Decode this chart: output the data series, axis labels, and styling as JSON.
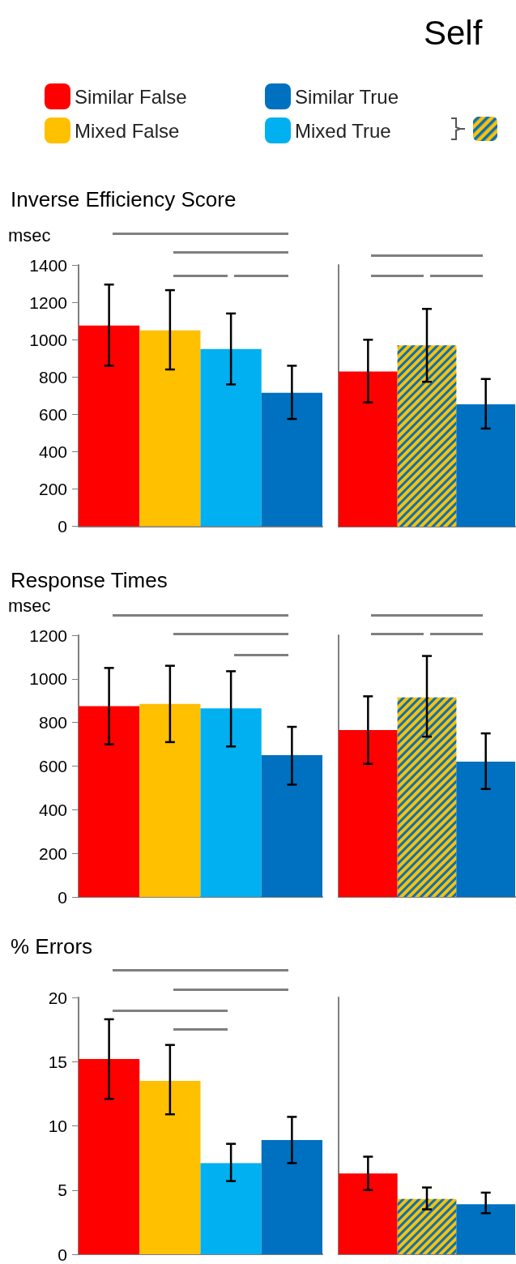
{
  "chart_data": [
    {
      "type": "bar",
      "title": "Inverse Efficiency Score",
      "ylabel": "msec",
      "categories": [
        null,
        null,
        null,
        null
      ],
      "stacked": true,
      "legend": "top",
      "tick_labels": "y",
      "grid": false,
      "ylim": [
        0,
        1400
      ],
      "yticks": [
        0,
        200,
        400,
        600,
        800,
        1000,
        1200,
        1400
      ],
      "series": [
        {
          "name": "Similar False",
          "color": "#ff0000",
          "values": [
            1075,
            null,
            null,
            null
          ],
          "errors": [
            [
              860,
              1295
            ],
            null,
            null,
            null
          ]
        },
        {
          "name": "Mixed False",
          "color": "#ffc000",
          "values": [
            null,
            1050,
            null,
            null
          ],
          "errors": [
            null,
            [
              840,
              1265
            ],
            null,
            null
          ]
        },
        {
          "name": "Mixed True",
          "color": "#00b0f0",
          "values": [
            null,
            null,
            950,
            null
          ],
          "errors": [
            null,
            null,
            [
              760,
              1140
            ],
            null
          ]
        },
        {
          "name": "Similar True",
          "color": "#0070c0",
          "values": [
            null,
            null,
            null,
            715
          ],
          "errors": [
            null,
            null,
            null,
            [
              575,
              860
            ]
          ]
        }
      ]
    },
    {
      "type": "bar",
      "title": "Self",
      "categories": [
        null,
        null,
        null
      ],
      "stacked": true,
      "tick_labels": false,
      "grid": false,
      "ylim": [
        0,
        1400
      ],
      "yticks": [
        0,
        200,
        400,
        600,
        800,
        1000,
        1200,
        1400
      ],
      "series": [
        {
          "color": "#ff0000",
          "values": [
            830,
            null,
            null
          ],
          "errors": [
            [
              665,
              1000
            ],
            null,
            null
          ]
        },
        {
          "color": "#ffc000",
          "values": [
            null,
            970,
            null
          ],
          "errors": [
            null,
            [
              775,
              1165
            ],
            null
          ]
        },
        {
          "color": "#0070c0",
          "values": [
            null,
            null,
            655
          ],
          "errors": [
            null,
            null,
            [
              525,
              790
            ]
          ]
        }
      ]
    },
    {
      "type": "bar",
      "title": "Response Times",
      "ylabel": "msec",
      "categories": [
        null,
        null,
        null,
        null
      ],
      "stacked": true,
      "tick_labels": "y",
      "grid": false,
      "ylim": [
        0,
        1200
      ],
      "yticks": [
        0,
        200,
        400,
        600,
        800,
        1000,
        1200
      ],
      "series": [
        {
          "color": "#ff0000",
          "values": [
            875,
            null,
            null,
            null
          ],
          "errors": [
            [
              700,
              1050
            ],
            null,
            null,
            null
          ]
        },
        {
          "color": "#ffc000",
          "values": [
            null,
            885,
            null,
            null
          ],
          "errors": [
            null,
            [
              710,
              1060
            ],
            null,
            null
          ]
        },
        {
          "color": "#00b0f0",
          "values": [
            null,
            null,
            865,
            null
          ],
          "errors": [
            null,
            null,
            [
              690,
              1035
            ],
            null
          ]
        },
        {
          "color": "#0070c0",
          "values": [
            null,
            null,
            null,
            650
          ],
          "errors": [
            null,
            null,
            null,
            [
              515,
              780
            ]
          ]
        }
      ]
    },
    {
      "type": "bar",
      "categories": [
        null,
        null,
        null
      ],
      "stacked": true,
      "tick_labels": false,
      "grid": false,
      "ylim": [
        0,
        1200
      ],
      "yticks": [
        0,
        200,
        400,
        600,
        800,
        1000,
        1200
      ],
      "series": [
        {
          "color": "#ff0000",
          "values": [
            765,
            null,
            null
          ],
          "errors": [
            [
              610,
              920
            ],
            null,
            null
          ]
        },
        {
          "color": "#ffc000",
          "values": [
            null,
            915,
            null
          ],
          "errors": [
            null,
            [
              735,
              1105
            ],
            null
          ]
        },
        {
          "color": "#0070c0",
          "values": [
            null,
            null,
            620
          ],
          "errors": [
            null,
            null,
            [
              495,
              750
            ]
          ]
        }
      ]
    },
    {
      "type": "bar",
      "title": "% Errors",
      "categories": [
        null,
        null,
        null,
        null
      ],
      "stacked": true,
      "tick_labels": "y",
      "grid": false,
      "ylim": [
        0,
        20
      ],
      "yticks": [
        0,
        5,
        10,
        15,
        20
      ],
      "series": [
        {
          "color": "#ff0000",
          "values": [
            15.2,
            null,
            null,
            null
          ],
          "errors": [
            [
              12.1,
              18.3
            ],
            null,
            null,
            null
          ]
        },
        {
          "color": "#ffc000",
          "values": [
            null,
            13.5,
            null,
            null
          ],
          "errors": [
            null,
            [
              10.9,
              16.3
            ],
            null,
            null
          ]
        },
        {
          "color": "#00b0f0",
          "values": [
            null,
            null,
            7.1,
            null
          ],
          "errors": [
            null,
            null,
            [
              5.7,
              8.6
            ],
            null
          ]
        },
        {
          "color": "#0070c0",
          "values": [
            null,
            null,
            null,
            8.9
          ],
          "errors": [
            null,
            null,
            null,
            [
              7.1,
              10.7
            ]
          ]
        }
      ]
    },
    {
      "type": "bar",
      "categories": [
        null,
        null,
        null
      ],
      "stacked": true,
      "tick_labels": false,
      "grid": false,
      "ylim": [
        0,
        20
      ],
      "yticks": [
        0,
        5,
        10,
        15,
        20
      ],
      "series": [
        {
          "color": "#ff0000",
          "values": [
            6.3,
            null,
            null
          ],
          "errors": [
            [
              5.0,
              7.6
            ],
            null,
            null
          ]
        },
        {
          "color": "#ffc000",
          "values": [
            null,
            4.3,
            null
          ],
          "errors": [
            null,
            [
              3.5,
              5.2
            ],
            null
          ]
        },
        {
          "color": "#0070c0",
          "values": [
            null,
            null,
            3.9
          ],
          "errors": [
            null,
            null,
            [
              3.2,
              4.8
            ]
          ]
        }
      ]
    }
  ]
}
